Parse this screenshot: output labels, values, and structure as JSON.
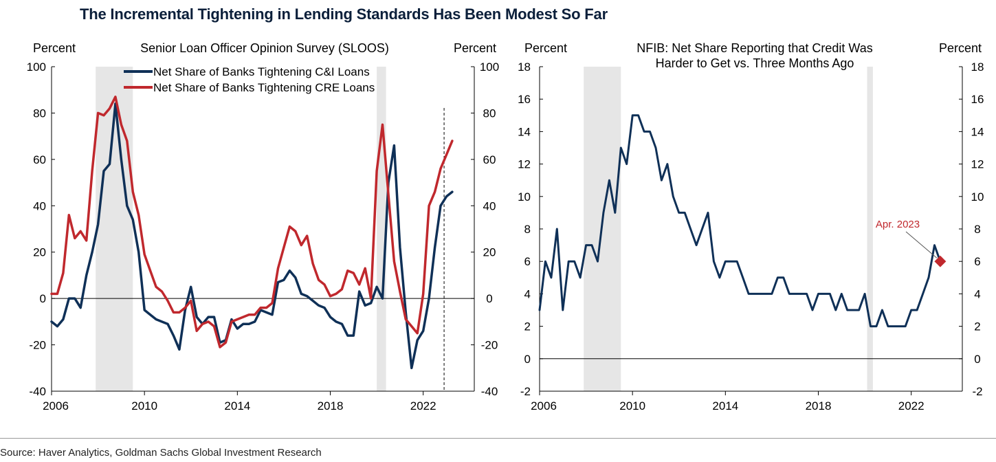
{
  "title": "The Incremental Tightening in Lending Standards Has Been Modest So Far",
  "source": "Source: Haver Analytics, Goldman Sachs Global Investment Research",
  "colors": {
    "navy": "#0f3057",
    "red": "#c0282d",
    "shade": "#e6e6e6",
    "annotation": "#c0282d"
  },
  "chart_data": [
    {
      "type": "line",
      "title": "Senior Loan Officer Opinion Survey (SLOOS)",
      "ylabel_left": "Percent",
      "ylabel_right": "Percent",
      "xlim": [
        2006,
        2024.2
      ],
      "ylim": [
        -40,
        100
      ],
      "yticks": [
        -40,
        -20,
        0,
        20,
        40,
        60,
        80,
        100
      ],
      "ytick_labels": [
        "-40",
        "-20",
        "0",
        "20",
        "40",
        "60",
        "80",
        "100"
      ],
      "xticks": [
        2006,
        2010,
        2014,
        2018,
        2022
      ],
      "xtick_labels": [
        "2006",
        "2010",
        "2014",
        "2018",
        "2022"
      ],
      "recessions": [
        [
          2007.9,
          2009.5
        ],
        [
          2020.0,
          2020.4
        ]
      ],
      "reference_line": {
        "x": 2022.9,
        "style": "dashed"
      },
      "legend_position": "top-center",
      "series": [
        {
          "name": "Net Share of Banks Tightening C&I Loans",
          "color": "#0f3057",
          "x": [
            2006.0,
            2006.25,
            2006.5,
            2006.75,
            2007.0,
            2007.25,
            2007.5,
            2007.75,
            2008.0,
            2008.25,
            2008.5,
            2008.75,
            2009.0,
            2009.25,
            2009.5,
            2009.75,
            2010.0,
            2010.25,
            2010.5,
            2010.75,
            2011.0,
            2011.25,
            2011.5,
            2011.75,
            2012.0,
            2012.25,
            2012.5,
            2012.75,
            2013.0,
            2013.25,
            2013.5,
            2013.75,
            2014.0,
            2014.25,
            2014.5,
            2014.75,
            2015.0,
            2015.25,
            2015.5,
            2015.75,
            2016.0,
            2016.25,
            2016.5,
            2016.75,
            2017.0,
            2017.25,
            2017.5,
            2017.75,
            2018.0,
            2018.25,
            2018.5,
            2018.75,
            2019.0,
            2019.25,
            2019.5,
            2019.75,
            2020.0,
            2020.25,
            2020.5,
            2020.75,
            2021.0,
            2021.25,
            2021.5,
            2021.75,
            2022.0,
            2022.25,
            2022.5,
            2022.75,
            2023.0,
            2023.25
          ],
          "values": [
            -10,
            -12,
            -9,
            0,
            0,
            -4,
            10,
            20,
            32,
            55,
            58,
            84,
            60,
            40,
            34,
            20,
            -5,
            -7,
            -9,
            -10,
            -11,
            -16,
            -22,
            -5,
            5,
            -8,
            -11,
            -8,
            -8,
            -19,
            -18,
            -9,
            -13,
            -11,
            -11,
            -10,
            -5,
            -6,
            -7,
            7,
            8,
            12,
            9,
            2,
            1,
            -1,
            -3,
            -4,
            -8,
            -10,
            -11,
            -16,
            -16,
            3,
            -3,
            -2,
            5,
            0,
            50,
            66,
            22,
            -6,
            -30,
            -18,
            -14,
            0,
            22,
            40,
            44,
            46
          ]
        },
        {
          "name": "Net Share of Banks Tightening CRE Loans",
          "color": "#c0282d",
          "x": [
            2006.0,
            2006.25,
            2006.5,
            2006.75,
            2007.0,
            2007.25,
            2007.5,
            2007.75,
            2008.0,
            2008.25,
            2008.5,
            2008.75,
            2009.0,
            2009.25,
            2009.5,
            2009.75,
            2010.0,
            2010.25,
            2010.5,
            2010.75,
            2011.0,
            2011.25,
            2011.5,
            2011.75,
            2012.0,
            2012.25,
            2012.5,
            2012.75,
            2013.0,
            2013.25,
            2013.5,
            2013.75,
            2014.0,
            2014.25,
            2014.5,
            2014.75,
            2015.0,
            2015.25,
            2015.5,
            2015.75,
            2016.0,
            2016.25,
            2016.5,
            2016.75,
            2017.0,
            2017.25,
            2017.5,
            2017.75,
            2018.0,
            2018.25,
            2018.5,
            2018.75,
            2019.0,
            2019.25,
            2019.5,
            2019.75,
            2020.0,
            2020.25,
            2020.5,
            2020.75,
            2021.0,
            2021.25,
            2021.5,
            2021.75,
            2022.0,
            2022.25,
            2022.5,
            2022.75,
            2023.0,
            2023.25
          ],
          "values": [
            2,
            2,
            11,
            36,
            26,
            29,
            25,
            55,
            80,
            79,
            82,
            87,
            75,
            68,
            46,
            36,
            19,
            12,
            5,
            3,
            -1,
            -6,
            -6,
            -4,
            -1,
            -14,
            -11,
            -10,
            -12,
            -21,
            -19,
            -10,
            -9,
            -8,
            -7,
            -7,
            -4,
            -4,
            -2,
            13,
            22,
            31,
            29,
            23,
            27,
            15,
            8,
            6,
            1,
            2,
            4,
            12,
            11,
            6,
            13,
            0,
            55,
            75,
            45,
            16,
            3,
            -9,
            -12,
            -15,
            2,
            40,
            46,
            56,
            62,
            68
          ]
        }
      ]
    },
    {
      "type": "line",
      "title": "NFIB: Net Share Reporting that Credit Was Harder to Get vs. Three Months Ago",
      "title_lines": [
        "NFIB: Net Share Reporting that Credit Was",
        "Harder to Get vs. Three Months Ago"
      ],
      "ylabel_left": "Percent",
      "ylabel_right": "Percent",
      "xlim": [
        2006,
        2024.2
      ],
      "ylim": [
        -2,
        18
      ],
      "yticks": [
        -2,
        0,
        2,
        4,
        6,
        8,
        10,
        12,
        14,
        16,
        18
      ],
      "ytick_labels": [
        "-2",
        "0",
        "2",
        "4",
        "6",
        "8",
        "10",
        "12",
        "14",
        "16",
        "18"
      ],
      "xticks": [
        2006,
        2010,
        2014,
        2018,
        2022
      ],
      "xtick_labels": [
        "2006",
        "2010",
        "2014",
        "2018",
        "2022"
      ],
      "recessions": [
        [
          2007.9,
          2009.5
        ],
        [
          2020.1,
          2020.35
        ]
      ],
      "annotation": {
        "text": "Apr. 2023",
        "x": 2023.25,
        "y": 6
      },
      "series": [
        {
          "name": "",
          "color": "#0f3057",
          "x": [
            2006.0,
            2006.25,
            2006.5,
            2006.75,
            2007.0,
            2007.25,
            2007.5,
            2007.75,
            2008.0,
            2008.25,
            2008.5,
            2008.75,
            2009.0,
            2009.25,
            2009.5,
            2009.75,
            2010.0,
            2010.25,
            2010.5,
            2010.75,
            2011.0,
            2011.25,
            2011.5,
            2011.75,
            2012.0,
            2012.25,
            2012.5,
            2012.75,
            2013.0,
            2013.25,
            2013.5,
            2013.75,
            2014.0,
            2014.25,
            2014.5,
            2014.75,
            2015.0,
            2015.25,
            2015.5,
            2015.75,
            2016.0,
            2016.25,
            2016.5,
            2016.75,
            2017.0,
            2017.25,
            2017.5,
            2017.75,
            2018.0,
            2018.25,
            2018.5,
            2018.75,
            2019.0,
            2019.25,
            2019.5,
            2019.75,
            2020.0,
            2020.25,
            2020.5,
            2020.75,
            2021.0,
            2021.25,
            2021.5,
            2021.75,
            2022.0,
            2022.25,
            2022.5,
            2022.75,
            2023.0,
            2023.25
          ],
          "values": [
            3,
            6,
            5,
            8,
            3,
            6,
            6,
            5,
            7,
            7,
            6,
            9,
            11,
            9,
            13,
            12,
            15,
            15,
            14,
            14,
            13,
            11,
            12,
            10,
            9,
            9,
            8,
            7,
            8,
            9,
            6,
            5,
            6,
            6,
            6,
            5,
            4,
            4,
            4,
            4,
            4,
            5,
            5,
            4,
            4,
            4,
            4,
            3,
            4,
            4,
            4,
            3,
            4,
            3,
            3,
            3,
            4,
            2,
            2,
            3,
            2,
            2,
            2,
            2,
            3,
            3,
            4,
            5,
            7,
            6
          ]
        }
      ]
    }
  ]
}
